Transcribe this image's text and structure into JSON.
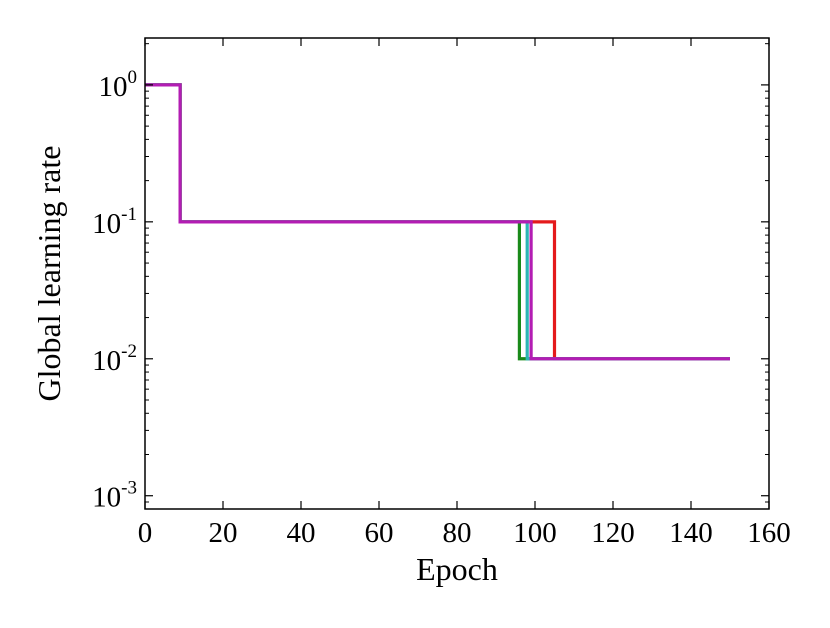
{
  "chart_data": {
    "type": "line",
    "title": "",
    "xlabel": "Epoch",
    "ylabel": "Global learning rate",
    "xscale": "linear",
    "yscale": "log",
    "xlim": [
      0,
      160
    ],
    "ylim": [
      0.0008,
      2.2
    ],
    "grid": false,
    "legend": "none",
    "x_ticks": [
      0,
      20,
      40,
      60,
      80,
      100,
      120,
      140,
      160
    ],
    "y_ticks": [
      {
        "value": 1,
        "base": "10",
        "exp": "0"
      },
      {
        "value": 0.1,
        "base": "10",
        "exp": "-1"
      },
      {
        "value": 0.01,
        "base": "10",
        "exp": "-2"
      },
      {
        "value": 0.001,
        "base": "10",
        "exp": "-3"
      }
    ],
    "series": [
      {
        "color": "#e41a1c",
        "x": [
          0,
          9,
          9,
          105,
          105,
          150
        ],
        "y": [
          1,
          1,
          0.1,
          0.1,
          0.01,
          0.01
        ]
      },
      {
        "color": "#1a8a1a",
        "x": [
          0,
          9,
          9,
          96,
          96,
          150
        ],
        "y": [
          1,
          1,
          0.1,
          0.1,
          0.01,
          0.01
        ]
      },
      {
        "color": "#2bb5b5",
        "x": [
          0,
          9,
          9,
          98,
          98,
          150
        ],
        "y": [
          1,
          1,
          0.1,
          0.1,
          0.01,
          0.01
        ]
      },
      {
        "color": "#b31db3",
        "x": [
          0,
          9,
          9,
          99,
          99,
          150
        ],
        "y": [
          1,
          1,
          0.1,
          0.1,
          0.01,
          0.01
        ]
      }
    ]
  }
}
